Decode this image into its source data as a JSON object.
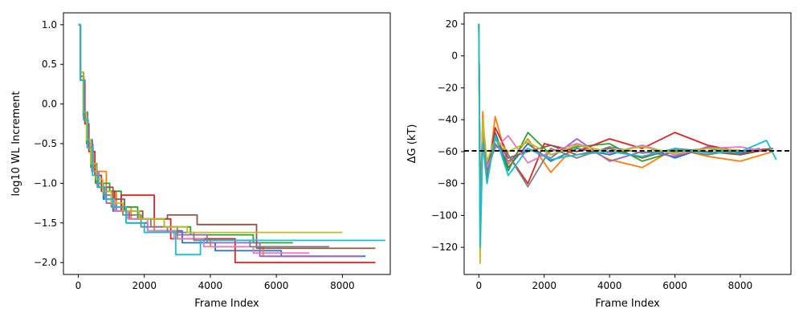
{
  "chart_data": [
    {
      "type": "line",
      "xlabel": "Frame Index",
      "ylabel": "log10 WL Increment",
      "xlim": [
        -450,
        9450
      ],
      "ylim": [
        -2.15,
        1.15
      ],
      "xticks": [
        0,
        2000,
        4000,
        6000,
        8000
      ],
      "xtick_labels": [
        "0",
        "2000",
        "4000",
        "6000",
        "8000"
      ],
      "yticks": [
        1.0,
        0.5,
        0.0,
        -0.5,
        -1.0,
        -1.5,
        -2.0
      ],
      "ytick_labels": [
        "1.0",
        "0.5",
        "0.0",
        "−0.5",
        "−1.0",
        "−1.5",
        "−2.0"
      ],
      "grid": false,
      "style": "step",
      "series": [
        {
          "color": "#1f77b4",
          "x": [
            0,
            60,
            160,
            280,
            420,
            560,
            760,
            1050,
            1450,
            2100,
            3150,
            4150,
            6150,
            8700
          ],
          "y": [
            1.0,
            0.4,
            -0.1,
            -0.45,
            -0.75,
            -1.0,
            -1.2,
            -1.35,
            -1.5,
            -1.6,
            -1.75,
            -1.85,
            -1.92,
            -1.92
          ]
        },
        {
          "color": "#ff7f0e",
          "x": [
            0,
            60,
            180,
            300,
            450,
            650,
            850,
            1150,
            1600,
            2300,
            3000,
            4000,
            5600,
            7300
          ],
          "y": [
            1.0,
            0.3,
            -0.2,
            -0.55,
            -0.85,
            -0.85,
            -1.1,
            -1.3,
            -1.45,
            -1.6,
            -1.7,
            -1.8,
            -1.92,
            -1.92
          ]
        },
        {
          "color": "#2ca02c",
          "x": [
            0,
            60,
            150,
            250,
            380,
            520,
            720,
            950,
            1300,
            1800,
            2600,
            3400,
            5300,
            6500
          ],
          "y": [
            1.0,
            0.35,
            -0.15,
            -0.5,
            -0.8,
            -1.0,
            -1.0,
            -1.1,
            -1.3,
            -1.45,
            -1.55,
            -1.65,
            -1.75,
            -1.75
          ]
        },
        {
          "color": "#d62728",
          "x": [
            0,
            70,
            200,
            320,
            500,
            700,
            1100,
            1300,
            2300,
            2800,
            4750,
            6200,
            9000
          ],
          "y": [
            1.0,
            0.3,
            -0.25,
            -0.6,
            -0.9,
            -1.1,
            -1.35,
            -1.15,
            -1.45,
            -1.7,
            -2.0,
            -2.0,
            -2.0
          ]
        },
        {
          "color": "#9467bd",
          "x": [
            0,
            60,
            170,
            290,
            440,
            620,
            850,
            1150,
            1550,
            2200,
            3000,
            3900,
            5500,
            8600
          ],
          "y": [
            1.0,
            0.35,
            -0.2,
            -0.5,
            -0.85,
            -1.05,
            -1.25,
            -1.35,
            -1.45,
            -1.55,
            -1.65,
            -1.75,
            -1.92,
            -1.92
          ]
        },
        {
          "color": "#8c564b",
          "x": [
            0,
            60,
            160,
            270,
            410,
            580,
            780,
            1050,
            1400,
            1950,
            2700,
            3600,
            5400,
            9000
          ],
          "y": [
            1.0,
            0.35,
            -0.2,
            -0.55,
            -0.85,
            -1.05,
            -1.05,
            -1.2,
            -1.35,
            -1.45,
            -1.4,
            -1.52,
            -1.82,
            -1.82
          ]
        },
        {
          "color": "#e377c2",
          "x": [
            0,
            60,
            170,
            280,
            430,
            600,
            820,
            1100,
            1500,
            2100,
            2900,
            3800,
            5300,
            7000
          ],
          "y": [
            1.0,
            0.3,
            -0.2,
            -0.55,
            -0.85,
            -1.05,
            -1.2,
            -1.35,
            -1.45,
            -1.6,
            -1.7,
            -1.8,
            -1.88,
            -1.88
          ]
        },
        {
          "color": "#7f7f7f",
          "x": [
            0,
            60,
            160,
            270,
            400,
            560,
            760,
            1000,
            1350,
            1900,
            2700,
            3500,
            5200,
            7600
          ],
          "y": [
            1.0,
            0.35,
            -0.15,
            -0.5,
            -0.8,
            -1.0,
            -1.15,
            -1.3,
            -1.4,
            -1.55,
            -1.62,
            -1.72,
            -1.8,
            -1.8
          ]
        },
        {
          "color": "#bcbd22",
          "x": [
            0,
            60,
            150,
            250,
            380,
            540,
            740,
            1000,
            1350,
            1850,
            2600,
            3300,
            4600,
            8000
          ],
          "y": [
            1.0,
            0.4,
            -0.1,
            -0.45,
            -0.75,
            -0.95,
            -1.1,
            -1.25,
            -1.35,
            -1.45,
            -1.55,
            -1.62,
            -1.62,
            -1.62
          ]
        },
        {
          "color": "#17becf",
          "x": [
            0,
            60,
            170,
            290,
            430,
            600,
            800,
            1050,
            1450,
            2000,
            2950,
            3700,
            5000,
            9300
          ],
          "y": [
            1.0,
            0.3,
            -0.2,
            -0.55,
            -0.9,
            -1.05,
            -1.2,
            -1.3,
            -1.5,
            -1.62,
            -1.9,
            -1.72,
            -1.72,
            -1.72
          ]
        }
      ]
    },
    {
      "type": "line",
      "xlabel": "Frame Index",
      "ylabel": "ΔG (kT)",
      "xlim": [
        -450,
        9550
      ],
      "ylim": [
        -137,
        27
      ],
      "xticks": [
        0,
        2000,
        4000,
        6000,
        8000
      ],
      "xtick_labels": [
        "0",
        "2000",
        "4000",
        "6000",
        "8000"
      ],
      "yticks": [
        20,
        0,
        -20,
        -40,
        -60,
        -80,
        -100,
        -120
      ],
      "ytick_labels": [
        "20",
        "0",
        "−20",
        "−40",
        "−60",
        "−80",
        "−100",
        "−120"
      ],
      "grid": false,
      "reference_line": {
        "y": -59.5,
        "style": "dashed",
        "color": "#000000"
      },
      "series": [
        {
          "color": "#1f77b4",
          "x": [
            0,
            40,
            120,
            250,
            500,
            900,
            1500,
            2200,
            3000,
            4000,
            5000,
            6000,
            7000,
            8000,
            8900
          ],
          "y": [
            20,
            -95,
            -40,
            -75,
            -48,
            -70,
            -55,
            -66,
            -58,
            -62,
            -56,
            -64,
            -57,
            -61,
            -59
          ]
        },
        {
          "color": "#ff7f0e",
          "x": [
            0,
            40,
            120,
            250,
            500,
            900,
            1500,
            2200,
            3000,
            4000,
            5000,
            6000,
            7000,
            8000,
            9000
          ],
          "y": [
            20,
            -110,
            -35,
            -80,
            -38,
            -68,
            -52,
            -73,
            -55,
            -65,
            -70,
            -58,
            -63,
            -66,
            -60
          ]
        },
        {
          "color": "#2ca02c",
          "x": [
            0,
            40,
            120,
            250,
            500,
            900,
            1500,
            2200,
            3000,
            4000,
            5000,
            6000,
            7000,
            8000,
            8700
          ],
          "y": [
            20,
            -100,
            -45,
            -70,
            -50,
            -72,
            -48,
            -62,
            -57,
            -55,
            -66,
            -60,
            -58,
            -62,
            -59
          ]
        },
        {
          "color": "#d62728",
          "x": [
            0,
            40,
            120,
            250,
            500,
            900,
            1500,
            2000,
            3000,
            4000,
            5000,
            6000,
            7000,
            8000,
            9000
          ],
          "y": [
            20,
            -90,
            -50,
            -78,
            -45,
            -62,
            -80,
            -55,
            -60,
            -52,
            -58,
            -48,
            -56,
            -60,
            -58
          ]
        },
        {
          "color": "#9467bd",
          "x": [
            0,
            40,
            120,
            250,
            500,
            900,
            1500,
            2200,
            3000,
            4000,
            5000,
            6000,
            7000,
            8000,
            8600
          ],
          "y": [
            20,
            -105,
            -42,
            -68,
            -55,
            -66,
            -58,
            -64,
            -52,
            -66,
            -60,
            -63,
            -57,
            -60,
            -58
          ]
        },
        {
          "color": "#8c564b",
          "x": [
            0,
            40,
            120,
            250,
            500,
            900,
            1500,
            2200,
            3000,
            4000,
            5000,
            6000,
            7000,
            8000,
            9000
          ],
          "y": [
            20,
            -95,
            -48,
            -72,
            -52,
            -64,
            -60,
            -56,
            -62,
            -58,
            -64,
            -58,
            -60,
            -62,
            -58
          ]
        },
        {
          "color": "#e377c2",
          "x": [
            0,
            40,
            120,
            250,
            500,
            900,
            1500,
            2200,
            3000,
            4000,
            5000,
            6000,
            7000,
            8000,
            8800
          ],
          "y": [
            20,
            -100,
            -44,
            -70,
            -58,
            -50,
            -67,
            -60,
            -55,
            -61,
            -56,
            -62,
            -58,
            -57,
            -60
          ]
        },
        {
          "color": "#7f7f7f",
          "x": [
            0,
            40,
            120,
            250,
            500,
            900,
            1500,
            2200,
            3000,
            4000,
            5000,
            6000,
            7000,
            7600
          ],
          "y": [
            20,
            -95,
            -50,
            -74,
            -56,
            -62,
            -82,
            -58,
            -64,
            -57,
            -61,
            -59,
            -62,
            -60
          ]
        },
        {
          "color": "#bcbd22",
          "x": [
            0,
            40,
            120,
            250,
            500,
            900,
            1500,
            2200,
            3000,
            4000,
            5000,
            6000,
            7000,
            8000
          ],
          "y": [
            20,
            -130,
            -40,
            -66,
            -52,
            -60,
            -54,
            -62,
            -56,
            -60,
            -57,
            -61,
            -58,
            -59
          ]
        },
        {
          "color": "#17becf",
          "x": [
            0,
            40,
            120,
            250,
            500,
            900,
            1500,
            2200,
            3000,
            4000,
            5000,
            6000,
            7000,
            8000,
            8800,
            9100
          ],
          "y": [
            20,
            -120,
            -55,
            -80,
            -50,
            -75,
            -58,
            -65,
            -62,
            -60,
            -63,
            -58,
            -61,
            -60,
            -53,
            -65
          ]
        }
      ]
    }
  ]
}
